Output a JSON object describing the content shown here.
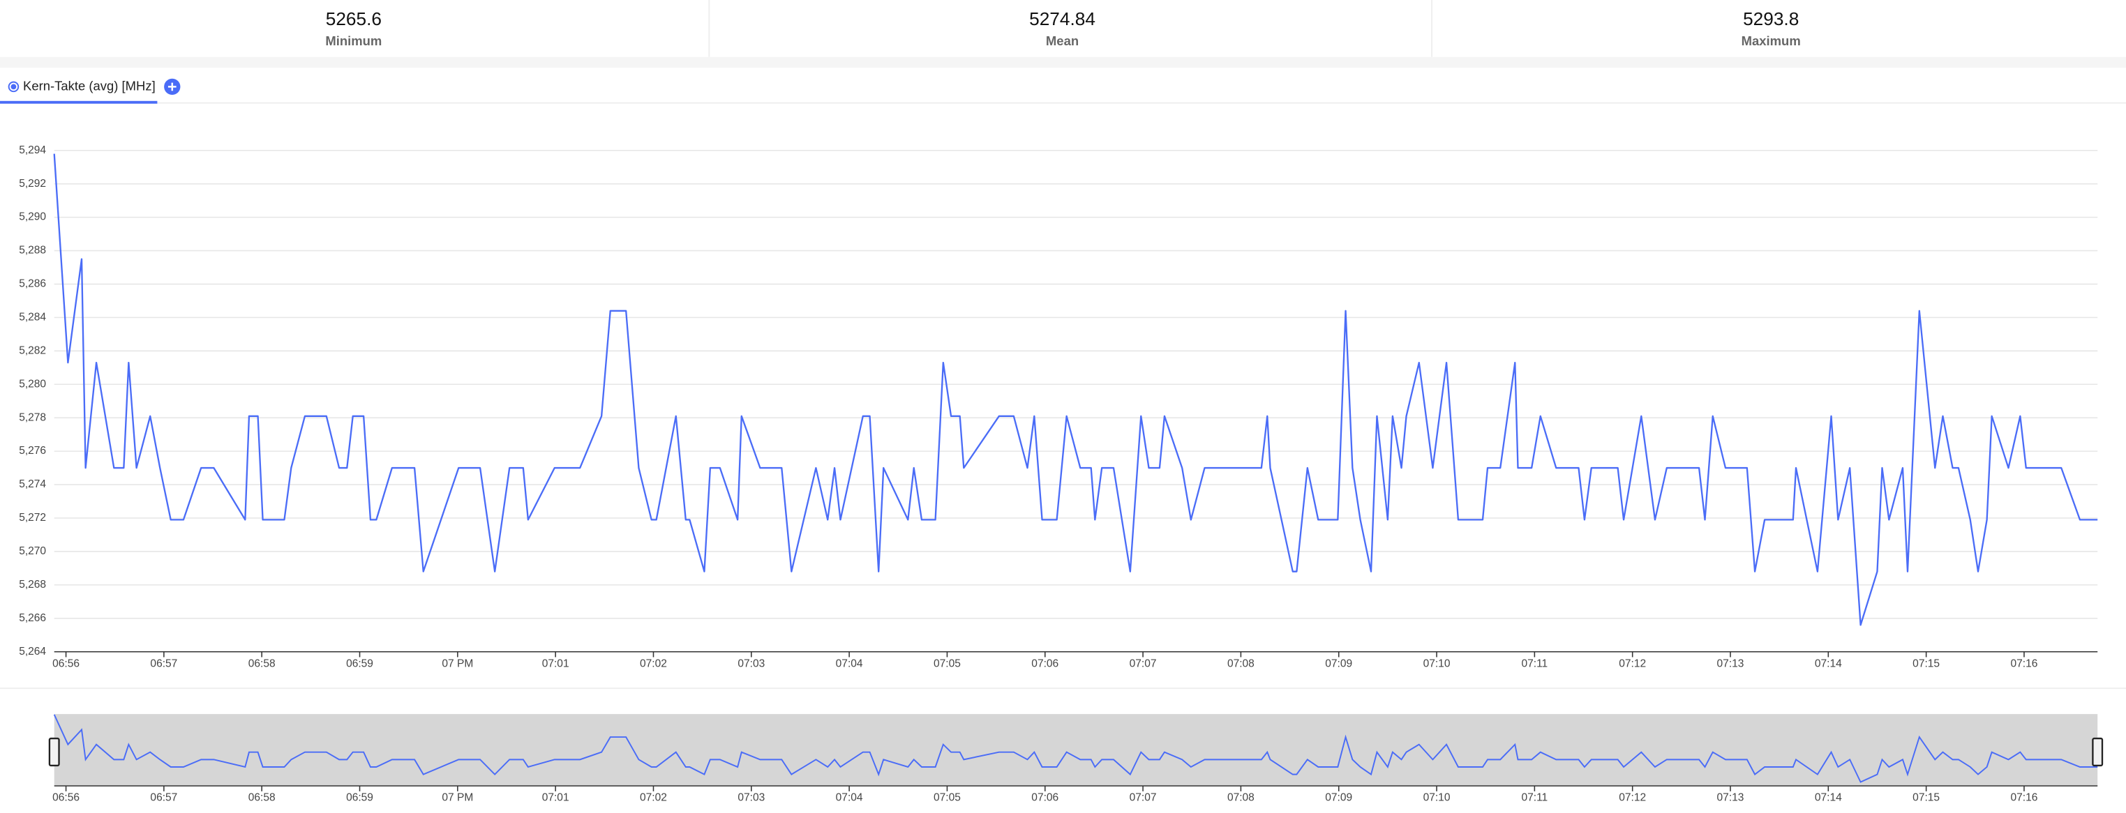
{
  "stats": [
    {
      "value": 5265.6,
      "label": "Minimum"
    },
    {
      "value": 5274.84,
      "label": "Mean"
    },
    {
      "value": 5293.8,
      "label": "Maximum"
    }
  ],
  "chart_data": {
    "type": "line",
    "series": [
      {
        "name": "Kern-Takte (avg) [MHz]",
        "color": "#4a6cf7",
        "x": [
          415.88,
          416.02,
          416.16,
          416.2,
          416.31,
          416.49,
          416.59,
          416.64,
          416.72,
          416.86,
          416.96,
          417.07,
          417.2,
          417.38,
          417.51,
          417.83,
          417.87,
          417.96,
          418.01,
          418.23,
          418.3,
          418.44,
          418.66,
          418.79,
          418.87,
          418.93,
          419.04,
          419.11,
          419.17,
          419.33,
          419.56,
          419.65,
          420.01,
          420.23,
          420.38,
          420.53,
          420.67,
          420.72,
          420.99,
          421.25,
          421.47,
          421.56,
          421.72,
          421.85,
          421.98,
          422.03,
          422.23,
          422.33,
          422.37,
          422.52,
          422.58,
          422.68,
          422.86,
          422.9,
          423.09,
          423.31,
          423.41,
          423.66,
          423.78,
          423.85,
          423.91,
          424.14,
          424.21,
          424.3,
          424.35,
          424.6,
          424.66,
          424.74,
          424.88,
          424.96,
          425.04,
          425.13,
          425.17,
          425.53,
          425.68,
          425.82,
          425.89,
          425.97,
          426.12,
          426.22,
          426.36,
          426.47,
          426.51,
          426.58,
          426.7,
          426.87,
          426.98,
          427.06,
          427.17,
          427.22,
          427.4,
          427.49,
          427.63,
          428.21,
          428.27,
          428.3,
          428.53,
          428.57,
          428.68,
          428.79,
          428.99,
          429.07,
          429.14,
          429.22,
          429.33,
          429.39,
          429.5,
          429.55,
          429.64,
          429.69,
          429.82,
          429.96,
          430.1,
          430.22,
          430.47,
          430.52,
          430.65,
          430.8,
          430.83,
          430.97,
          431.06,
          431.22,
          431.45,
          431.51,
          431.58,
          431.85,
          431.91,
          432.09,
          432.23,
          432.35,
          432.68,
          432.74,
          432.82,
          432.95,
          433.17,
          433.25,
          433.35,
          433.64,
          433.67,
          433.89,
          434.03,
          434.1,
          434.22,
          434.33,
          434.5,
          434.55,
          434.62,
          434.76,
          434.81,
          434.93,
          435.09,
          435.17,
          435.27,
          435.33,
          435.45,
          435.53,
          435.62,
          435.67,
          435.84,
          435.96,
          436.02,
          436.38,
          436.57,
          436.75
        ],
        "values": [
          5293.8,
          5281.3,
          5287.5,
          5275,
          5281.3,
          5275,
          5275,
          5281.3,
          5275,
          5278.1,
          5275,
          5271.9,
          5271.9,
          5275,
          5275,
          5271.9,
          5278.1,
          5278.1,
          5271.9,
          5271.9,
          5275,
          5278.1,
          5278.1,
          5275,
          5275,
          5278.1,
          5278.1,
          5271.9,
          5271.9,
          5275,
          5275,
          5268.8,
          5275,
          5275,
          5268.8,
          5275,
          5275,
          5271.9,
          5275,
          5275,
          5278.1,
          5284.4,
          5284.4,
          5275,
          5271.9,
          5271.9,
          5278.1,
          5271.9,
          5271.9,
          5268.8,
          5275,
          5275,
          5271.9,
          5278.1,
          5275,
          5275,
          5268.8,
          5275,
          5271.9,
          5275,
          5271.9,
          5278.1,
          5278.1,
          5268.8,
          5275,
          5271.9,
          5275,
          5271.9,
          5271.9,
          5281.3,
          5278.1,
          5278.1,
          5275,
          5278.1,
          5278.1,
          5275,
          5278.1,
          5271.9,
          5271.9,
          5278.1,
          5275,
          5275,
          5271.9,
          5275,
          5275,
          5268.8,
          5278.1,
          5275,
          5275,
          5278.1,
          5275,
          5271.9,
          5275,
          5275,
          5278.1,
          5275,
          5268.8,
          5268.8,
          5275,
          5271.9,
          5271.9,
          5284.4,
          5275,
          5271.9,
          5268.8,
          5278.1,
          5271.9,
          5278.1,
          5275,
          5278.1,
          5281.3,
          5275,
          5281.3,
          5271.9,
          5271.9,
          5275,
          5275,
          5281.3,
          5275,
          5275,
          5278.1,
          5275,
          5275,
          5271.9,
          5275,
          5275,
          5271.9,
          5278.1,
          5271.9,
          5275,
          5275,
          5271.9,
          5278.1,
          5275,
          5275,
          5268.8,
          5271.9,
          5271.9,
          5275,
          5268.8,
          5278.1,
          5271.9,
          5275,
          5265.6,
          5268.8,
          5275,
          5271.9,
          5275,
          5268.8,
          5284.4,
          5275,
          5278.1,
          5275,
          5275,
          5271.9,
          5268.8,
          5271.9,
          5278.1,
          5275,
          5278.1,
          5275,
          5275,
          5271.9,
          5271.9
        ]
      }
    ],
    "xlim": [
      415.88,
      436.75
    ],
    "xticks": [
      {
        "value": 416,
        "label": "06:56"
      },
      {
        "value": 417,
        "label": "06:57"
      },
      {
        "value": 418,
        "label": "06:58"
      },
      {
        "value": 419,
        "label": "06:59"
      },
      {
        "value": 420,
        "label": "07 PM"
      },
      {
        "value": 421,
        "label": "07:01"
      },
      {
        "value": 422,
        "label": "07:02"
      },
      {
        "value": 423,
        "label": "07:03"
      },
      {
        "value": 424,
        "label": "07:04"
      },
      {
        "value": 425,
        "label": "07:05"
      },
      {
        "value": 426,
        "label": "07:06"
      },
      {
        "value": 427,
        "label": "07:07"
      },
      {
        "value": 428,
        "label": "07:08"
      },
      {
        "value": 429,
        "label": "07:09"
      },
      {
        "value": 430,
        "label": "07:10"
      },
      {
        "value": 431,
        "label": "07:11"
      },
      {
        "value": 432,
        "label": "07:12"
      },
      {
        "value": 433,
        "label": "07:13"
      },
      {
        "value": 434,
        "label": "07:14"
      },
      {
        "value": 435,
        "label": "07:15"
      },
      {
        "value": 436,
        "label": "07:16"
      }
    ],
    "ylim": [
      5264,
      5294
    ],
    "yticks": [
      {
        "value": 5264,
        "label": "5,264"
      },
      {
        "value": 5266,
        "label": "5,266"
      },
      {
        "value": 5268,
        "label": "5,268"
      },
      {
        "value": 5270,
        "label": "5,270"
      },
      {
        "value": 5272,
        "label": "5,272"
      },
      {
        "value": 5274,
        "label": "5,274"
      },
      {
        "value": 5276,
        "label": "5,276"
      },
      {
        "value": 5278,
        "label": "5,278"
      },
      {
        "value": 5280,
        "label": "5,280"
      },
      {
        "value": 5282,
        "label": "5,282"
      },
      {
        "value": 5284,
        "label": "5,284"
      },
      {
        "value": 5286,
        "label": "5,286"
      },
      {
        "value": 5288,
        "label": "5,288"
      },
      {
        "value": 5290,
        "label": "5,290"
      },
      {
        "value": 5292,
        "label": "5,292"
      },
      {
        "value": 5294,
        "label": "5,294"
      }
    ],
    "grid": true
  }
}
